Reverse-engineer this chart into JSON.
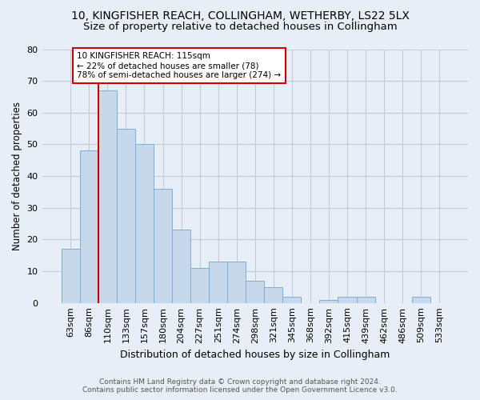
{
  "title1": "10, KINGFISHER REACH, COLLINGHAM, WETHERBY, LS22 5LX",
  "title2": "Size of property relative to detached houses in Collingham",
  "xlabel": "Distribution of detached houses by size in Collingham",
  "ylabel": "Number of detached properties",
  "categories": [
    "63sqm",
    "86sqm",
    "110sqm",
    "133sqm",
    "157sqm",
    "180sqm",
    "204sqm",
    "227sqm",
    "251sqm",
    "274sqm",
    "298sqm",
    "321sqm",
    "345sqm",
    "368sqm",
    "392sqm",
    "415sqm",
    "439sqm",
    "462sqm",
    "486sqm",
    "509sqm",
    "533sqm"
  ],
  "values": [
    17,
    48,
    67,
    55,
    50,
    36,
    23,
    11,
    13,
    13,
    7,
    5,
    2,
    0,
    1,
    2,
    2,
    0,
    0,
    2,
    0
  ],
  "bar_color": "#c8d8ec",
  "bar_edge_color": "#7aafd4",
  "vline_color": "#cc0000",
  "annotation_box_edge": "#cc0000",
  "annotation_line1": "10 KINGFISHER REACH: 115sqm",
  "annotation_line2": "← 22% of detached houses are smaller (78)",
  "annotation_line3": "78% of semi-detached houses are larger (274) →",
  "ylim": [
    0,
    80
  ],
  "yticks": [
    0,
    10,
    20,
    30,
    40,
    50,
    60,
    70,
    80
  ],
  "footer1": "Contains HM Land Registry data © Crown copyright and database right 2024.",
  "footer2": "Contains public sector information licensed under the Open Government Licence v3.0.",
  "bg_color": "#e8eef5",
  "plot_bg_color": "#e8eef5",
  "grid_color": "#c0ccd8",
  "title1_fontsize": 10,
  "title2_fontsize": 9.5
}
